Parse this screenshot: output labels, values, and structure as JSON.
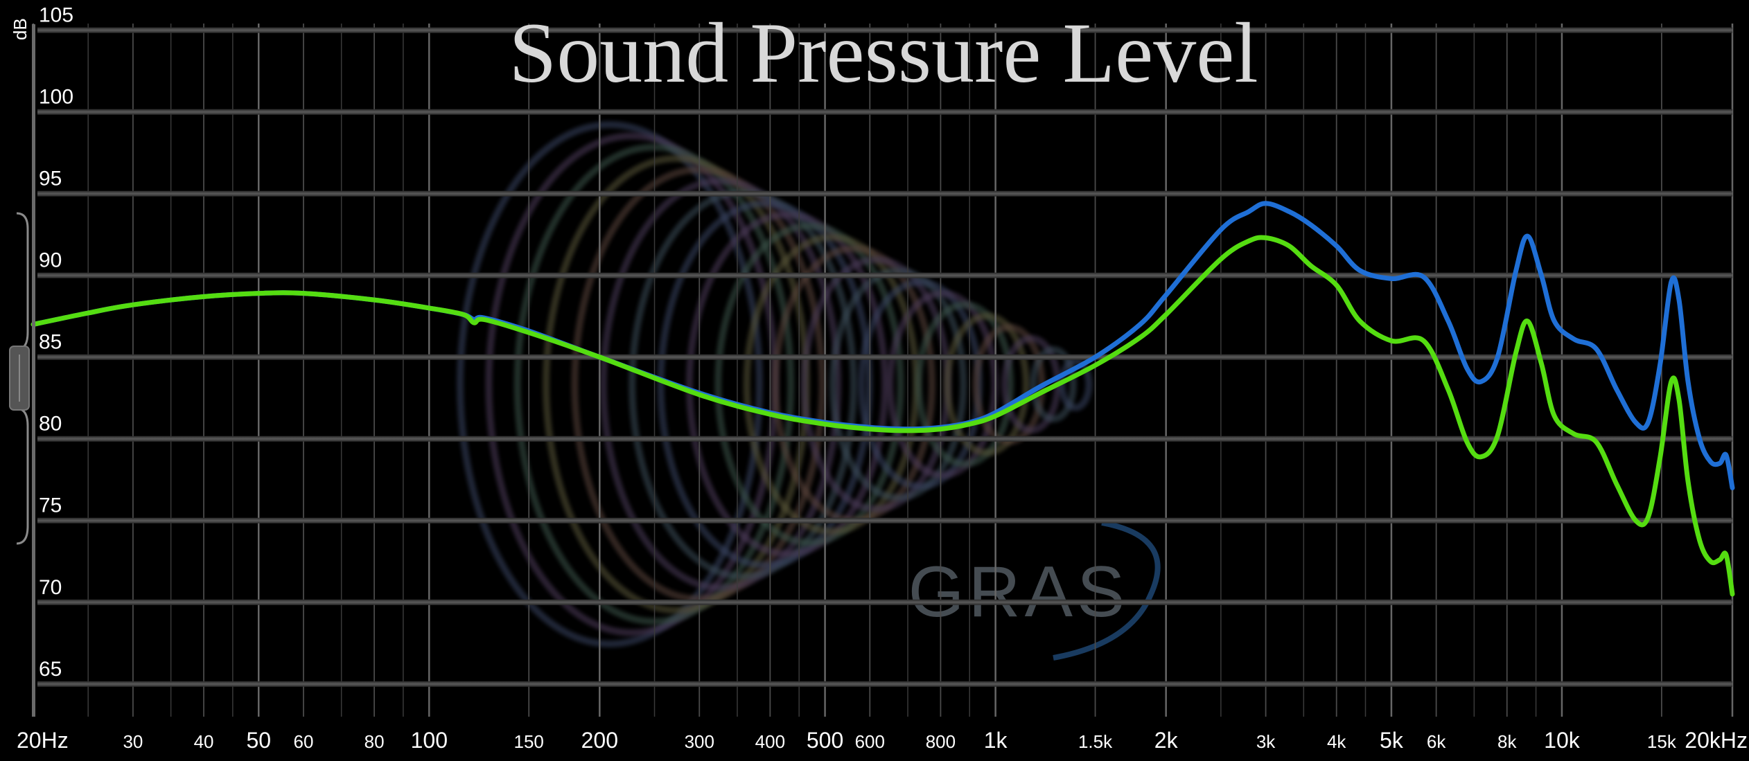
{
  "chart_data": {
    "type": "line",
    "title": "Sound Pressure Level",
    "ylabel": "dB",
    "xscale": "log",
    "xlim": [
      20,
      20000
    ],
    "ylim": [
      63,
      106
    ],
    "grid": true,
    "y_ticks": [
      {
        "value": 105,
        "label": "105"
      },
      {
        "value": 100,
        "label": "100"
      },
      {
        "value": 95,
        "label": "95"
      },
      {
        "value": 90,
        "label": "90"
      },
      {
        "value": 85,
        "label": "85"
      },
      {
        "value": 80,
        "label": "80"
      },
      {
        "value": 75,
        "label": "75"
      },
      {
        "value": 70,
        "label": "70"
      },
      {
        "value": 65,
        "label": "65"
      }
    ],
    "x_ticks": [
      {
        "value": 20,
        "label": "20Hz",
        "major": true
      },
      {
        "value": 30,
        "label": "30",
        "major": false
      },
      {
        "value": 40,
        "label": "40",
        "major": false
      },
      {
        "value": 50,
        "label": "50",
        "major": true
      },
      {
        "value": 60,
        "label": "60",
        "major": false
      },
      {
        "value": 80,
        "label": "80",
        "major": false
      },
      {
        "value": 100,
        "label": "100",
        "major": true
      },
      {
        "value": 150,
        "label": "150",
        "major": false
      },
      {
        "value": 200,
        "label": "200",
        "major": true
      },
      {
        "value": 300,
        "label": "300",
        "major": false
      },
      {
        "value": 400,
        "label": "400",
        "major": false
      },
      {
        "value": 500,
        "label": "500",
        "major": true
      },
      {
        "value": 600,
        "label": "600",
        "major": false
      },
      {
        "value": 800,
        "label": "800",
        "major": false
      },
      {
        "value": 1000,
        "label": "1k",
        "major": true
      },
      {
        "value": 1500,
        "label": "1.5k",
        "major": false
      },
      {
        "value": 2000,
        "label": "2k",
        "major": true
      },
      {
        "value": 3000,
        "label": "3k",
        "major": false
      },
      {
        "value": 4000,
        "label": "4k",
        "major": false
      },
      {
        "value": 5000,
        "label": "5k",
        "major": true
      },
      {
        "value": 6000,
        "label": "6k",
        "major": false
      },
      {
        "value": 8000,
        "label": "8k",
        "major": false
      },
      {
        "value": 10000,
        "label": "10k",
        "major": true
      },
      {
        "value": 15000,
        "label": "15k",
        "major": false
      },
      {
        "value": 20000,
        "label": "20kHz",
        "major": true
      }
    ],
    "minor_gridlines": [
      25,
      35,
      45,
      70,
      90,
      250,
      350,
      450,
      700,
      900,
      2500,
      3500,
      4500,
      7000,
      9000
    ],
    "series": [
      {
        "color": "#1f6fd6",
        "points": [
          [
            20,
            87.0
          ],
          [
            25,
            87.7
          ],
          [
            30,
            88.2
          ],
          [
            40,
            88.7
          ],
          [
            50,
            88.9
          ],
          [
            60,
            88.9
          ],
          [
            80,
            88.5
          ],
          [
            100,
            88.0
          ],
          [
            115,
            87.6
          ],
          [
            120,
            87.3
          ],
          [
            125,
            87.4
          ],
          [
            150,
            86.6
          ],
          [
            200,
            85.0
          ],
          [
            300,
            82.8
          ],
          [
            400,
            81.6
          ],
          [
            500,
            81.0
          ],
          [
            600,
            80.7
          ],
          [
            700,
            80.6
          ],
          [
            800,
            80.7
          ],
          [
            900,
            81.0
          ],
          [
            1000,
            81.6
          ],
          [
            1200,
            83.2
          ],
          [
            1500,
            85.0
          ],
          [
            1800,
            87.0
          ],
          [
            2000,
            88.8
          ],
          [
            2500,
            92.8
          ],
          [
            2800,
            93.9
          ],
          [
            3000,
            94.4
          ],
          [
            3300,
            93.9
          ],
          [
            3600,
            93.1
          ],
          [
            4000,
            91.8
          ],
          [
            4400,
            90.3
          ],
          [
            5000,
            89.8
          ],
          [
            5700,
            89.9
          ],
          [
            6300,
            87.2
          ],
          [
            6800,
            84.3
          ],
          [
            7200,
            83.5
          ],
          [
            7700,
            85.0
          ],
          [
            8300,
            90.3
          ],
          [
            8700,
            92.4
          ],
          [
            9200,
            90.0
          ],
          [
            9700,
            87.2
          ],
          [
            10500,
            86.1
          ],
          [
            11500,
            85.5
          ],
          [
            12500,
            83.0
          ],
          [
            13500,
            81.0
          ],
          [
            14200,
            81.0
          ],
          [
            14900,
            84.5
          ],
          [
            15600,
            89.6
          ],
          [
            16100,
            88.5
          ],
          [
            16700,
            83.5
          ],
          [
            17500,
            80.0
          ],
          [
            18300,
            78.6
          ],
          [
            19000,
            78.5
          ],
          [
            19500,
            79.0
          ],
          [
            20000,
            77.0
          ]
        ]
      },
      {
        "color": "#55dd11",
        "points": [
          [
            20,
            87.0
          ],
          [
            25,
            87.7
          ],
          [
            30,
            88.2
          ],
          [
            40,
            88.7
          ],
          [
            50,
            88.9
          ],
          [
            60,
            88.9
          ],
          [
            80,
            88.5
          ],
          [
            100,
            88.0
          ],
          [
            115,
            87.6
          ],
          [
            120,
            87.1
          ],
          [
            125,
            87.3
          ],
          [
            150,
            86.5
          ],
          [
            200,
            85.0
          ],
          [
            300,
            82.7
          ],
          [
            400,
            81.5
          ],
          [
            500,
            80.9
          ],
          [
            600,
            80.6
          ],
          [
            700,
            80.5
          ],
          [
            800,
            80.6
          ],
          [
            900,
            80.9
          ],
          [
            1000,
            81.4
          ],
          [
            1200,
            82.8
          ],
          [
            1500,
            84.5
          ],
          [
            1800,
            86.2
          ],
          [
            2000,
            87.6
          ],
          [
            2500,
            91.0
          ],
          [
            2800,
            92.1
          ],
          [
            3000,
            92.3
          ],
          [
            3300,
            91.8
          ],
          [
            3600,
            90.6
          ],
          [
            4000,
            89.4
          ],
          [
            4400,
            87.2
          ],
          [
            5000,
            86.0
          ],
          [
            5700,
            86.0
          ],
          [
            6300,
            83.0
          ],
          [
            6800,
            79.8
          ],
          [
            7200,
            78.9
          ],
          [
            7700,
            80.2
          ],
          [
            8300,
            85.3
          ],
          [
            8700,
            87.2
          ],
          [
            9200,
            84.6
          ],
          [
            9700,
            81.4
          ],
          [
            10500,
            80.3
          ],
          [
            11500,
            79.8
          ],
          [
            12500,
            77.2
          ],
          [
            13500,
            75.0
          ],
          [
            14200,
            75.2
          ],
          [
            14900,
            78.8
          ],
          [
            15600,
            83.5
          ],
          [
            16100,
            82.4
          ],
          [
            16700,
            77.4
          ],
          [
            17500,
            73.8
          ],
          [
            18300,
            72.5
          ],
          [
            19000,
            72.6
          ],
          [
            19500,
            72.9
          ],
          [
            20000,
            70.5
          ]
        ]
      }
    ]
  },
  "colors": {
    "background": "#000000",
    "gridline": "#4d4d4d",
    "text": "#ffffff",
    "title": "#d8d8d8"
  },
  "watermark": {
    "logo_text": "GRAS",
    "icon": "gras-logo-icon"
  }
}
